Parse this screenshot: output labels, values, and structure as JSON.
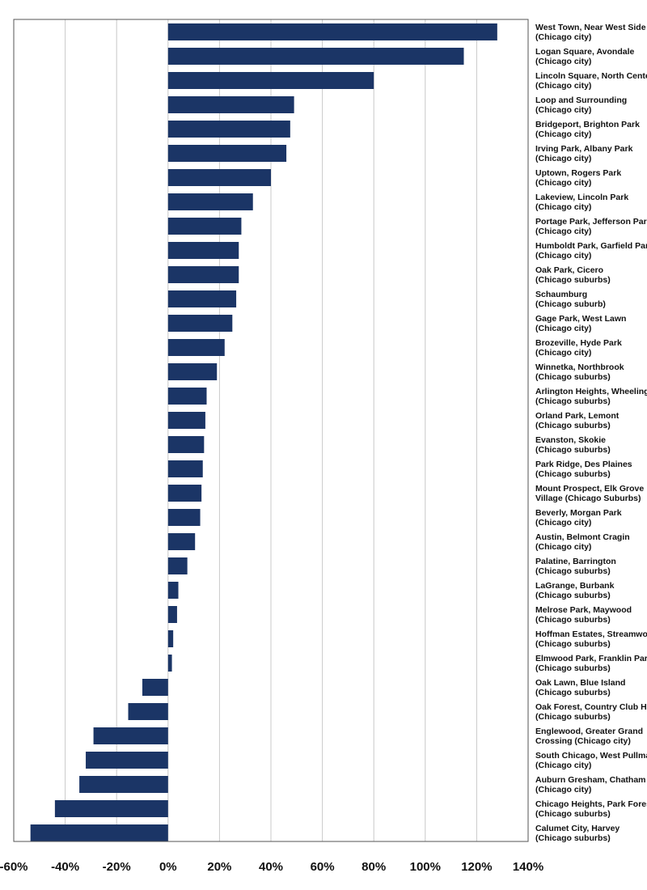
{
  "chart_data": {
    "type": "bar",
    "orientation": "horizontal",
    "title": "",
    "xlabel": "",
    "ylabel": "",
    "xlim": [
      -60,
      140
    ],
    "xticks": [
      -60,
      -40,
      -20,
      0,
      20,
      40,
      60,
      80,
      100,
      120,
      140
    ],
    "xtick_labels": [
      "-60%",
      "-40%",
      "-20%",
      "0%",
      "20%",
      "40%",
      "60%",
      "80%",
      "100%",
      "120%",
      "140%"
    ],
    "grid": true,
    "legend": "none",
    "bar_color": "#1b3566",
    "categories": [
      [
        "West Town, Near West Side",
        "(Chicago city)"
      ],
      [
        "Logan Square, Avondale",
        "(Chicago city)"
      ],
      [
        "Lincoln Square, North Center",
        "(Chicago city)"
      ],
      [
        "Loop and Surrounding",
        "(Chicago city)"
      ],
      [
        "Bridgeport, Brighton Park",
        "(Chicago city)"
      ],
      [
        "Irving Park, Albany Park",
        "(Chicago city)"
      ],
      [
        "Uptown, Rogers Park",
        "(Chicago city)"
      ],
      [
        "Lakeview, Lincoln Park",
        "(Chicago city)"
      ],
      [
        "Portage Park, Jefferson Park",
        "(Chicago city)"
      ],
      [
        "Humboldt Park, Garfield Park",
        "(Chicago city)"
      ],
      [
        "Oak Park, Cicero",
        "(Chicago suburbs)"
      ],
      [
        "Schaumburg",
        "(Chicago suburb)"
      ],
      [
        "Gage Park, West Lawn",
        "(Chicago city)"
      ],
      [
        "Brozeville, Hyde Park",
        "(Chicago city)"
      ],
      [
        "Winnetka, Northbrook",
        "(Chicago suburbs)"
      ],
      [
        "Arlington Heights, Wheeling",
        "(Chicago suburbs)"
      ],
      [
        "Orland Park, Lemont",
        "(Chicago suburbs)"
      ],
      [
        "Evanston, Skokie",
        "(Chicago suburbs)"
      ],
      [
        "Park Ridge, Des Plaines",
        "(Chicago suburbs)"
      ],
      [
        "Mount Prospect, Elk Grove",
        "Village (Chicago Suburbs)"
      ],
      [
        "Beverly, Morgan Park",
        "(Chicago city)"
      ],
      [
        "Austin, Belmont Cragin",
        "(Chicago city)"
      ],
      [
        "Palatine, Barrington",
        "(Chicago suburbs)"
      ],
      [
        "LaGrange, Burbank",
        "(Chicago suburbs)"
      ],
      [
        "Melrose Park, Maywood",
        "(Chicago suburbs)"
      ],
      [
        "Hoffman Estates, Streamwood",
        "(Chicago suburbs)"
      ],
      [
        "Elmwood Park, Franklin Park",
        "(Chicago suburbs)"
      ],
      [
        "Oak Lawn, Blue Island",
        "(Chicago suburbs)"
      ],
      [
        "Oak Forest, Country Club Hills",
        "(Chicago suburbs)"
      ],
      [
        "Englewood, Greater Grand",
        "Crossing (Chicago city)"
      ],
      [
        "South Chicago, West Pullman",
        "(Chicago city)"
      ],
      [
        "Auburn Gresham, Chatham",
        "(Chicago city)"
      ],
      [
        "Chicago Heights, Park Forest",
        "(Chicago suburbs)"
      ],
      [
        "Calumet City, Harvey",
        "(Chicago suburbs)"
      ]
    ],
    "values": [
      128,
      115,
      80,
      49,
      47.5,
      46,
      40,
      33,
      28.5,
      27.5,
      27.5,
      26.5,
      25,
      22,
      19,
      15,
      14.5,
      14,
      13.5,
      13,
      12.5,
      10.5,
      7.5,
      4,
      3.5,
      2,
      1.5,
      -10,
      -15.5,
      -29,
      -32,
      -34.5,
      -44,
      -53.5
    ]
  }
}
